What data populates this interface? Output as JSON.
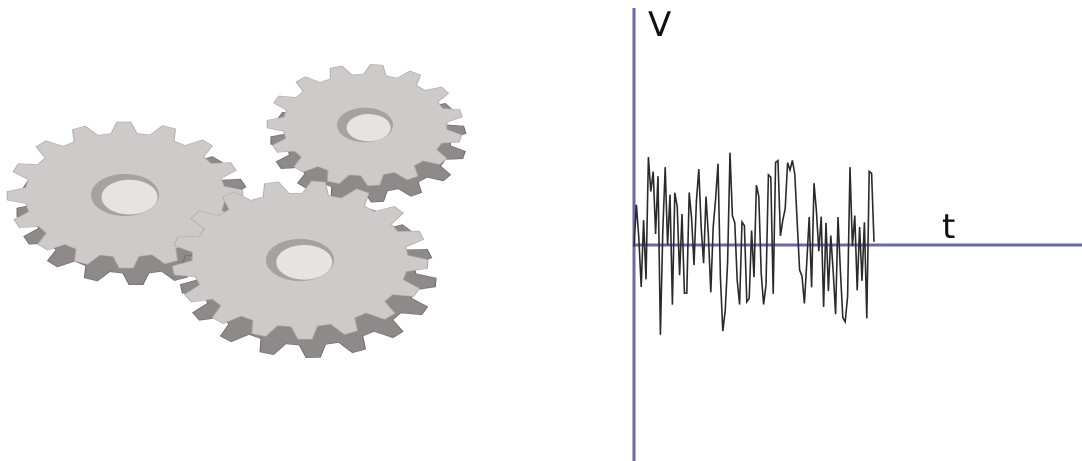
{
  "gears": {
    "count": 3,
    "face_color": "#cfcaca",
    "side_color": "#8f8a8a",
    "icon": "gear-icon"
  },
  "axes": {
    "y_label": "V",
    "x_label": "t",
    "color": "#6a6aa6"
  },
  "signal": {
    "color": "#2a2a2a",
    "type": "random-noise"
  }
}
